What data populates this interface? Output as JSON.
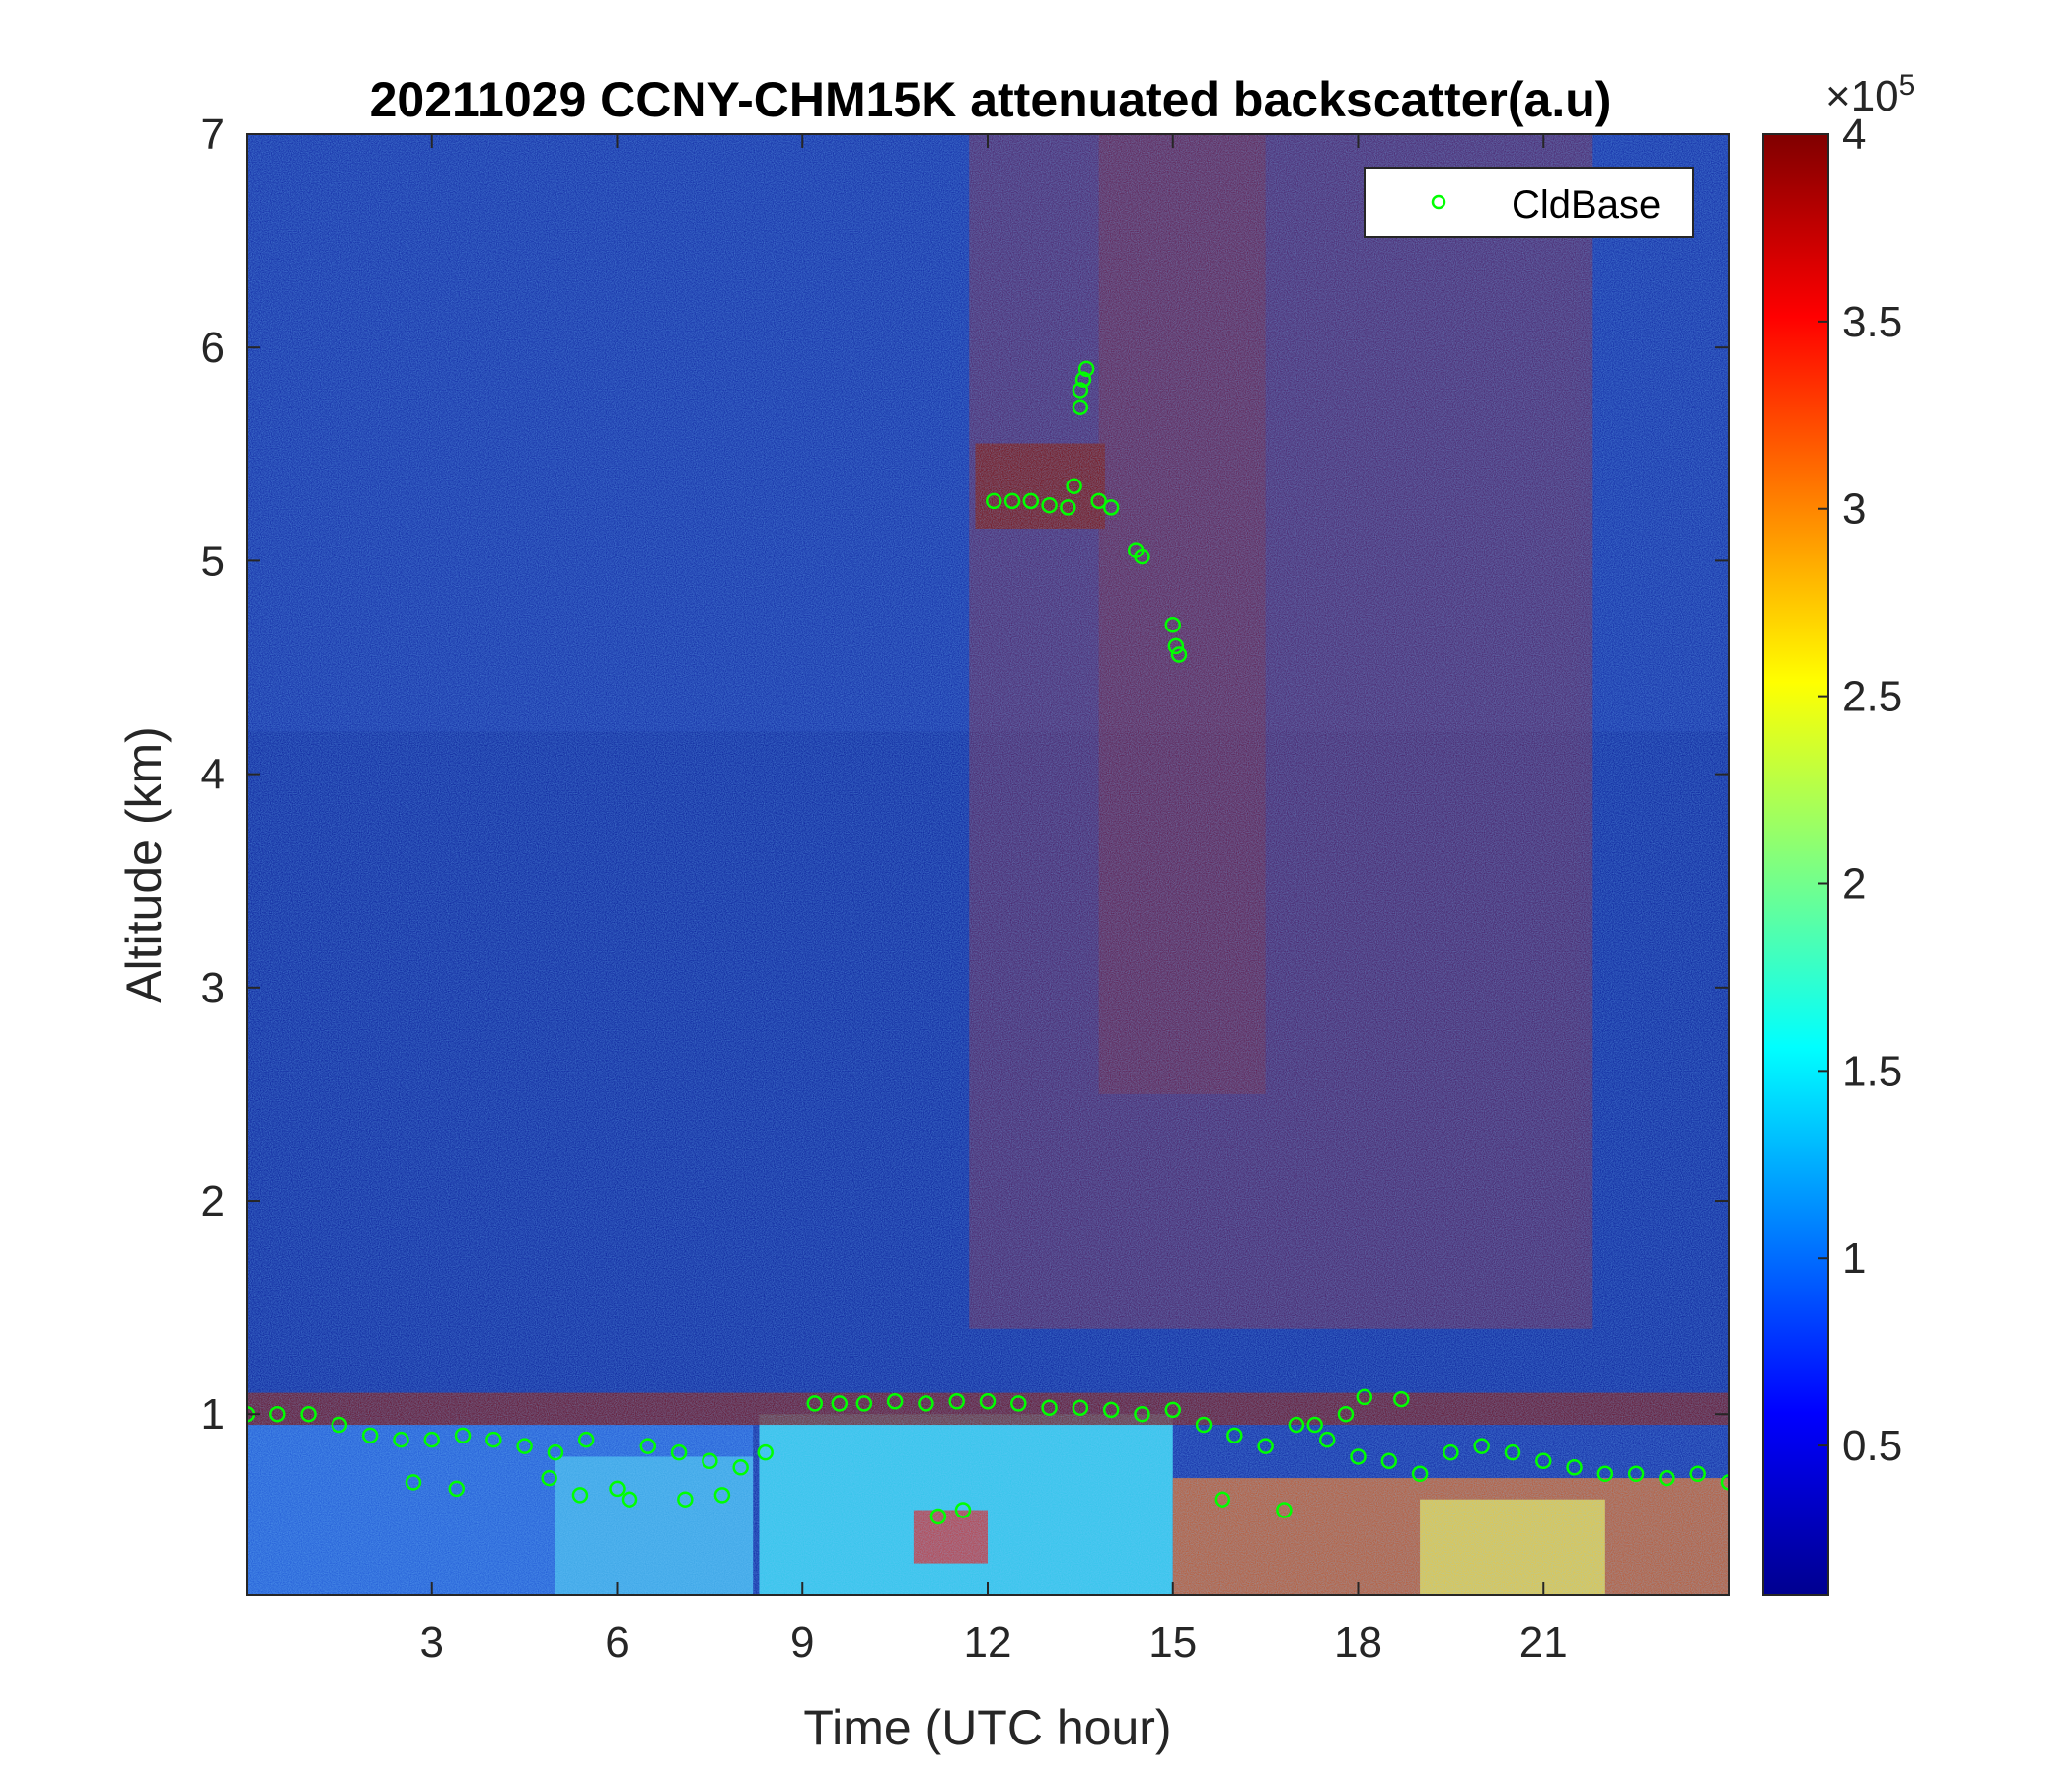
{
  "chart_data": {
    "type": "heatmap",
    "title": "20211029 CCNY-CHM15K attenuated backscatter(a.u)",
    "xlabel": "Time (UTC hour)",
    "ylabel": "Altitude (km)",
    "xlim": [
      0,
      24
    ],
    "ylim": [
      0.15,
      7
    ],
    "xticks": [
      3,
      6,
      9,
      12,
      15,
      18,
      21
    ],
    "yticks": [
      1,
      2,
      3,
      4,
      5,
      6,
      7
    ],
    "colorbar": {
      "colormap": "jet",
      "clim": [
        0.1,
        4
      ],
      "ticks": [
        "0.5",
        "1",
        "1.5",
        "2",
        "2.5",
        "3",
        "3.5",
        "4"
      ],
      "tick_values": [
        0.5,
        1,
        1.5,
        2,
        2.5,
        3,
        3.5,
        4
      ],
      "exponent_label": "×10",
      "exponent_power": "5"
    },
    "legend": {
      "placement": "top-right",
      "entries": [
        "CldBase"
      ]
    },
    "series": [
      {
        "name": "CldBase",
        "marker": "circle-open",
        "color": "#00ff00",
        "x": [
          0.0,
          0.5,
          1.0,
          1.5,
          2.0,
          2.5,
          3.0,
          3.5,
          4.0,
          4.5,
          5.0,
          5.5,
          6.0,
          6.5,
          7.0,
          7.5,
          8.0,
          8.4,
          9.2,
          9.6,
          10.0,
          10.5,
          11.0,
          11.5,
          12.0,
          12.5,
          13.0,
          13.5,
          14.0,
          14.5,
          15.0,
          15.5,
          16.0,
          16.5,
          17.0,
          17.5,
          18.0,
          18.5,
          19.0,
          19.5,
          20.0,
          20.5,
          21.0,
          21.5,
          22.0,
          22.5,
          23.0,
          23.5,
          24.0,
          11.2,
          11.6,
          12.1,
          12.4,
          12.7,
          13.0,
          13.3,
          13.4,
          13.5,
          13.5,
          13.55,
          13.6,
          13.8,
          14.0,
          14.4,
          14.5,
          15.0,
          15.05,
          15.1,
          6.2,
          7.1,
          2.7,
          3.4,
          4.9,
          5.4,
          7.7,
          15.8,
          16.8,
          17.3,
          17.8,
          18.1,
          18.7
        ],
        "y": [
          1.0,
          1.0,
          1.0,
          0.95,
          0.9,
          0.88,
          0.88,
          0.9,
          0.88,
          0.85,
          0.82,
          0.88,
          0.65,
          0.85,
          0.82,
          0.78,
          0.75,
          0.82,
          1.05,
          1.05,
          1.05,
          1.06,
          1.05,
          1.06,
          1.06,
          1.05,
          1.03,
          1.03,
          1.02,
          1.0,
          1.02,
          0.95,
          0.9,
          0.85,
          0.95,
          0.88,
          0.8,
          0.78,
          0.72,
          0.82,
          0.85,
          0.82,
          0.78,
          0.75,
          0.72,
          0.72,
          0.7,
          0.72,
          0.68,
          0.52,
          0.55,
          5.28,
          5.28,
          5.28,
          5.26,
          5.25,
          5.35,
          5.72,
          5.8,
          5.85,
          5.9,
          5.28,
          5.25,
          5.05,
          5.02,
          4.7,
          4.6,
          4.56,
          0.6,
          0.6,
          0.68,
          0.65,
          0.7,
          0.62,
          0.62,
          0.6,
          0.55,
          0.95,
          1.0,
          1.08,
          1.07
        ]
      }
    ]
  }
}
